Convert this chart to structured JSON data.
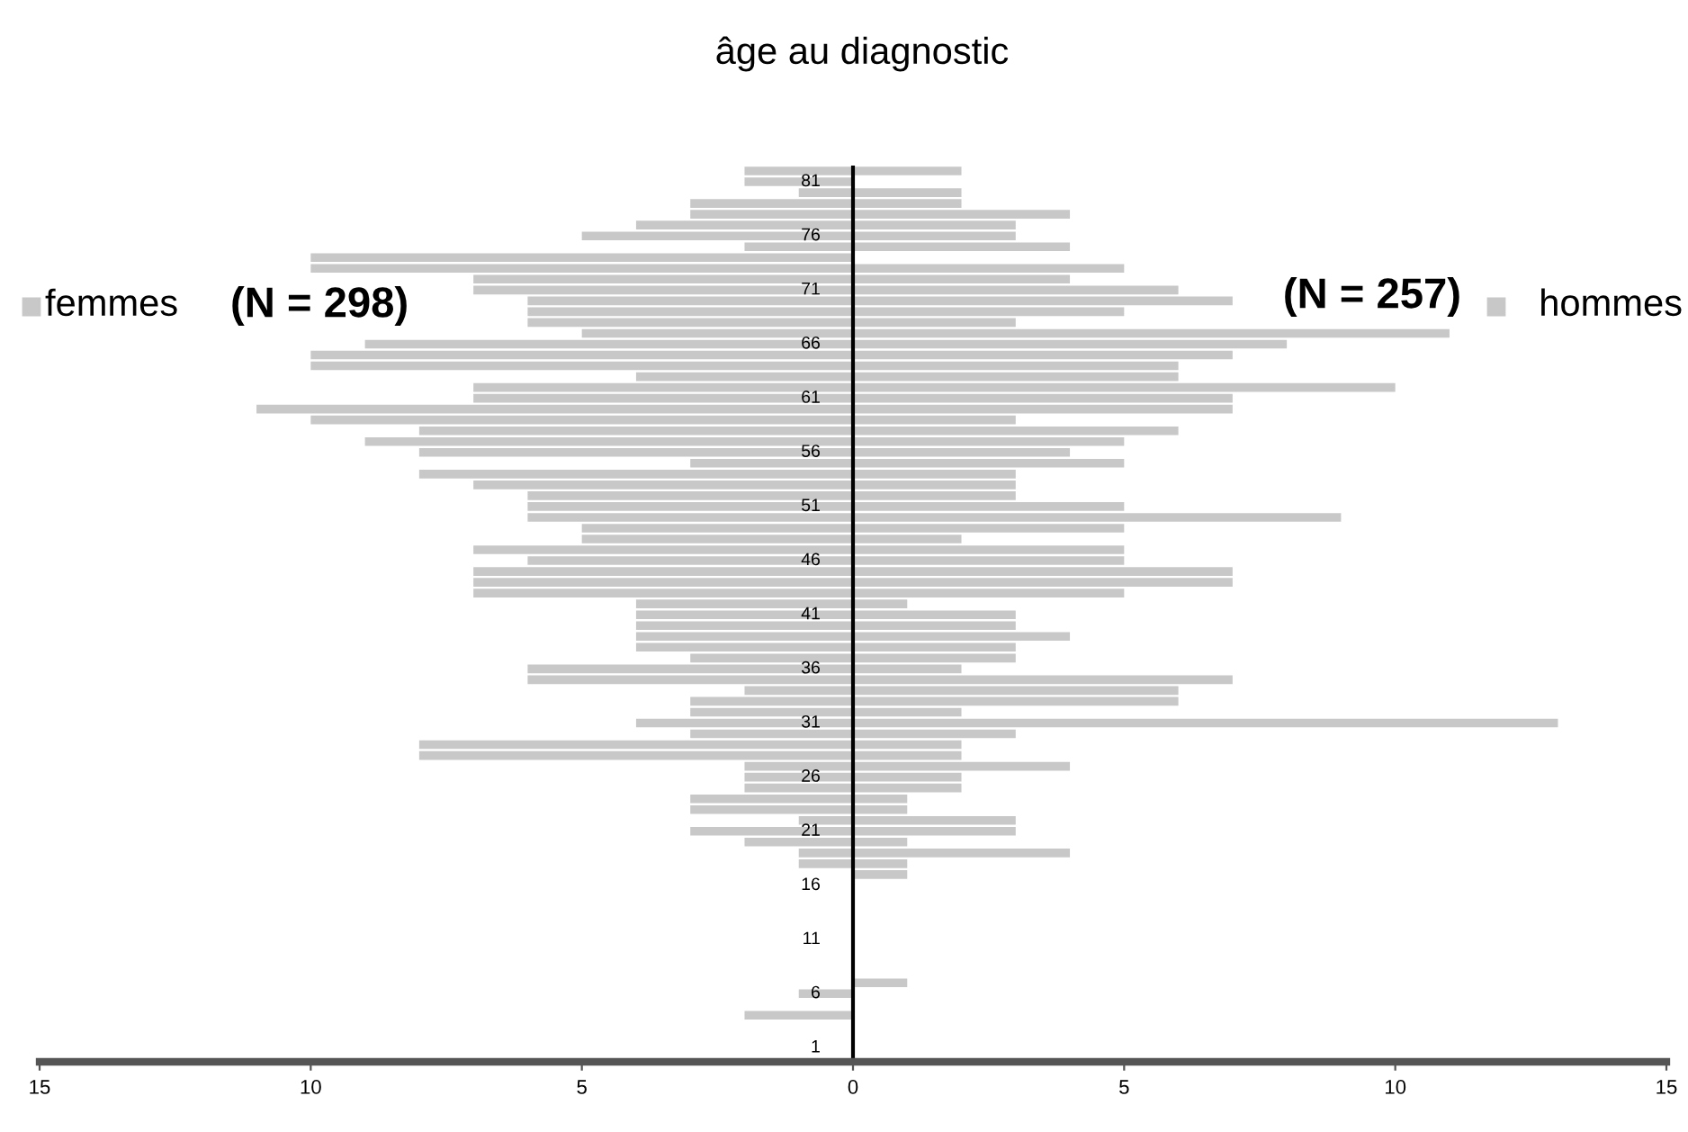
{
  "chart_data": {
    "type": "bar",
    "orientation": "horizontal",
    "title": "âge au diagnostic",
    "categories": [
      null,
      "81",
      null,
      null,
      null,
      null,
      "76",
      null,
      null,
      null,
      null,
      "71",
      null,
      null,
      null,
      null,
      "66",
      null,
      null,
      null,
      null,
      "61",
      null,
      null,
      null,
      null,
      "56",
      null,
      null,
      null,
      null,
      "51",
      null,
      null,
      null,
      null,
      "46",
      null,
      null,
      null,
      null,
      "41",
      null,
      null,
      null,
      null,
      "36",
      null,
      null,
      null,
      null,
      "31",
      null,
      null,
      null,
      null,
      "26",
      null,
      null,
      null,
      null,
      "21",
      null,
      null,
      null,
      null,
      "16",
      null,
      null,
      null,
      null,
      "11",
      null,
      null,
      null,
      null,
      "6",
      null,
      null,
      null,
      null,
      "1"
    ],
    "series": [
      {
        "name": "femmes",
        "color": "#c8c8c8",
        "values": [
          -2,
          -2,
          -1,
          -3,
          -3,
          -4,
          -5,
          -2,
          -10,
          -10,
          -7,
          -7,
          -6,
          -6,
          -6,
          -5,
          -9,
          -10,
          -10,
          -4,
          -7,
          -7,
          -11,
          -10,
          -8,
          -9,
          -8,
          -3,
          -8,
          -7,
          -6,
          -6,
          -6,
          -5,
          -5,
          -7,
          -6,
          -7,
          -7,
          -7,
          -4,
          -4,
          -4,
          -4,
          -4,
          -3,
          -6,
          -6,
          -2,
          -3,
          -3,
          -4,
          -3,
          -8,
          -8,
          -2,
          -2,
          -2,
          -3,
          -3,
          -1,
          -3,
          -2,
          -1,
          -1,
          0,
          0,
          0,
          0,
          0,
          0,
          0,
          0,
          0,
          0,
          0,
          -1,
          0,
          -2,
          0,
          0,
          0
        ]
      },
      {
        "name": "hommes",
        "color": "#c8c8c8",
        "values": [
          2,
          0,
          2,
          2,
          4,
          3,
          3,
          4,
          0,
          5,
          4,
          6,
          7,
          5,
          3,
          11,
          8,
          7,
          6,
          6,
          10,
          7,
          7,
          3,
          6,
          5,
          4,
          5,
          3,
          3,
          3,
          5,
          9,
          5,
          2,
          5,
          5,
          7,
          7,
          5,
          1,
          3,
          3,
          4,
          3,
          3,
          2,
          7,
          6,
          6,
          2,
          13,
          3,
          2,
          2,
          4,
          2,
          2,
          1,
          1,
          3,
          3,
          1,
          4,
          1,
          1,
          0,
          0,
          0,
          0,
          0,
          0,
          0,
          0,
          0,
          1,
          0,
          0,
          0,
          0,
          0,
          0
        ]
      }
    ],
    "xlim": [
      -15,
      15
    ],
    "xticks": [
      {
        "value": -15,
        "label": "15"
      },
      {
        "value": -10,
        "label": "10"
      },
      {
        "value": -5,
        "label": "5"
      },
      0,
      5,
      10,
      15
    ],
    "annotations": [
      "(N = 298)",
      "(N = 257)"
    ],
    "stacked": true,
    "grid": false,
    "legend": "top"
  }
}
